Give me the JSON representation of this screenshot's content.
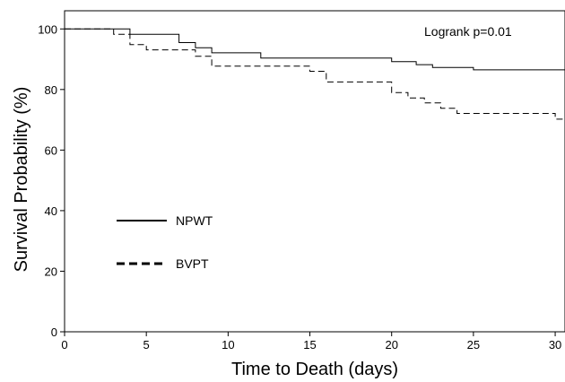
{
  "chart_data": {
    "type": "line",
    "xlabel": "Time to Death (days)",
    "ylabel": "Survival Probability (%)",
    "xlim": [
      0,
      30.6
    ],
    "ylim": [
      0,
      106
    ],
    "x_ticks": [
      0,
      5,
      10,
      15,
      20,
      25,
      30
    ],
    "y_ticks": [
      0,
      20,
      40,
      60,
      80,
      100
    ],
    "grid": false,
    "legend_position": "center-left",
    "annotation": "Logrank p=0.01",
    "step": true,
    "series": [
      {
        "name": "NPWT",
        "style": "solid",
        "color": "#000000",
        "x": [
          0,
          4,
          7,
          8,
          9,
          12,
          20,
          21.5,
          22.5,
          25,
          30.6
        ],
        "y": [
          100,
          98.2,
          95.5,
          93.8,
          92.1,
          90.4,
          89.2,
          88.2,
          87.3,
          86.5,
          86.5
        ]
      },
      {
        "name": "BVPT",
        "style": "dashed",
        "color": "#000000",
        "x": [
          0,
          3,
          4,
          5,
          8,
          9,
          15,
          16,
          20,
          21,
          22,
          23,
          24,
          30,
          30.6
        ],
        "y": [
          100,
          98.2,
          94.8,
          93.1,
          91.0,
          87.7,
          86.0,
          82.5,
          79.0,
          77.2,
          75.6,
          73.8,
          72.1,
          70.2,
          70.2
        ]
      }
    ]
  }
}
